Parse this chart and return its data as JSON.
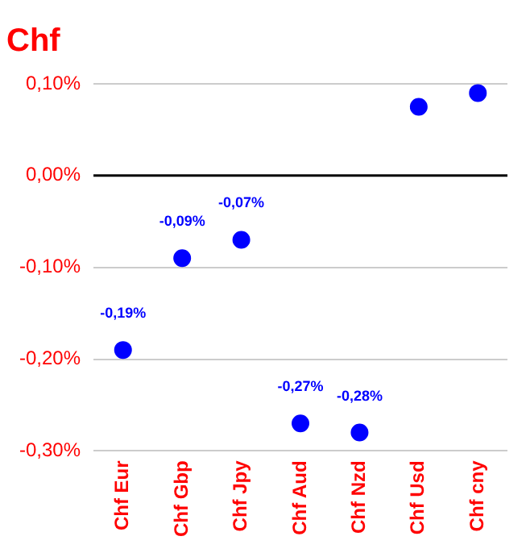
{
  "chart_data": {
    "type": "scatter",
    "title": "Chf",
    "categories": [
      "Chf Eur",
      "Chf Gbp",
      "Chf Jpy",
      "Chf Aud",
      "Chf Nzd",
      "Chf Usd",
      "Chf cny"
    ],
    "values": [
      -0.19,
      -0.09,
      -0.07,
      -0.27,
      -0.28,
      0.075,
      0.09
    ],
    "value_labels": [
      "-0,19%",
      "-0,09%",
      "-0,07%",
      "-0,27%",
      "-0,28%",
      null,
      null
    ],
    "color": "#0000ff",
    "ylim": [
      -0.3,
      0.1
    ],
    "yticks": [
      {
        "value": -0.3,
        "label": "-0,30%"
      },
      {
        "value": -0.2,
        "label": "-0,20%"
      },
      {
        "value": -0.1,
        "label": "-0,10%"
      },
      {
        "value": 0,
        "label": "0,00%"
      },
      {
        "value": 0.1,
        "label": "0,10%"
      }
    ],
    "ref_lines": [
      {
        "axis": "y",
        "value": 0,
        "color": "#000000"
      }
    ],
    "grid": "y",
    "legend": false,
    "marker": "circle"
  }
}
